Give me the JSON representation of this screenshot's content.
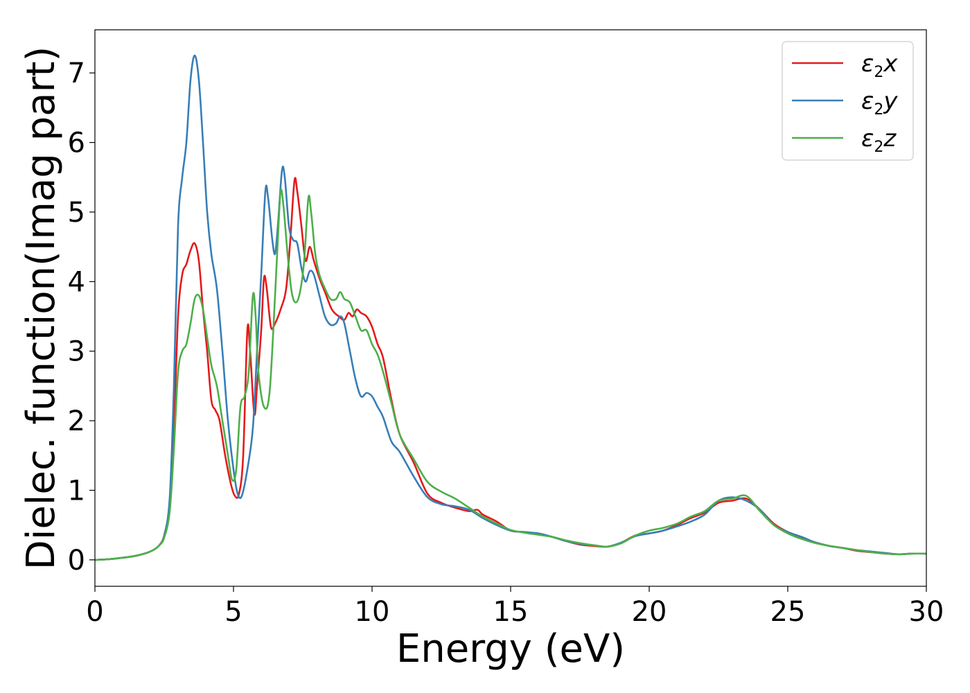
{
  "chart_data": {
    "type": "line",
    "xlabel": "Energy (eV)",
    "ylabel": "Dielec. function(Imag part)",
    "xlim": [
      0,
      30
    ],
    "ylim": [
      -0.38,
      7.62
    ],
    "xticks": [
      0,
      5,
      10,
      15,
      20,
      25,
      30
    ],
    "yticks": [
      0,
      1,
      2,
      3,
      4,
      5,
      6,
      7
    ],
    "grid": false,
    "legend_position": "top-right",
    "series": [
      {
        "name": "ε2x",
        "legend_base": "ε",
        "legend_sub": "2",
        "legend_var": "x",
        "color": "#e41a1c",
        "points": [
          [
            0,
            0
          ],
          [
            0.5,
            0.01
          ],
          [
            1,
            0.03
          ],
          [
            1.5,
            0.06
          ],
          [
            2,
            0.12
          ],
          [
            2.3,
            0.2
          ],
          [
            2.5,
            0.35
          ],
          [
            2.7,
            0.8
          ],
          [
            2.85,
            1.9
          ],
          [
            3.0,
            3.5
          ],
          [
            3.15,
            4.1
          ],
          [
            3.3,
            4.25
          ],
          [
            3.45,
            4.45
          ],
          [
            3.6,
            4.55
          ],
          [
            3.75,
            4.3
          ],
          [
            3.9,
            3.6
          ],
          [
            4.05,
            3.0
          ],
          [
            4.2,
            2.3
          ],
          [
            4.35,
            2.15
          ],
          [
            4.5,
            2.0
          ],
          [
            4.7,
            1.5
          ],
          [
            4.9,
            1.1
          ],
          [
            5.05,
            0.92
          ],
          [
            5.2,
            0.95
          ],
          [
            5.35,
            1.5
          ],
          [
            5.5,
            3.3
          ],
          [
            5.6,
            3.0
          ],
          [
            5.75,
            2.1
          ],
          [
            5.85,
            2.5
          ],
          [
            6.0,
            3.3
          ],
          [
            6.1,
            4.05
          ],
          [
            6.2,
            3.9
          ],
          [
            6.35,
            3.35
          ],
          [
            6.5,
            3.4
          ],
          [
            6.7,
            3.6
          ],
          [
            6.9,
            3.9
          ],
          [
            7.05,
            4.6
          ],
          [
            7.2,
            5.45
          ],
          [
            7.3,
            5.3
          ],
          [
            7.45,
            4.8
          ],
          [
            7.6,
            4.3
          ],
          [
            7.75,
            4.5
          ],
          [
            7.9,
            4.3
          ],
          [
            8.1,
            4.05
          ],
          [
            8.3,
            3.85
          ],
          [
            8.55,
            3.6
          ],
          [
            8.8,
            3.5
          ],
          [
            9.0,
            3.45
          ],
          [
            9.15,
            3.55
          ],
          [
            9.3,
            3.5
          ],
          [
            9.45,
            3.6
          ],
          [
            9.6,
            3.55
          ],
          [
            9.8,
            3.5
          ],
          [
            10.0,
            3.35
          ],
          [
            10.2,
            3.1
          ],
          [
            10.4,
            2.9
          ],
          [
            10.7,
            2.3
          ],
          [
            11.0,
            1.8
          ],
          [
            11.5,
            1.4
          ],
          [
            12.0,
            0.95
          ],
          [
            12.5,
            0.82
          ],
          [
            13.0,
            0.75
          ],
          [
            13.5,
            0.7
          ],
          [
            13.8,
            0.72
          ],
          [
            14.0,
            0.65
          ],
          [
            14.5,
            0.55
          ],
          [
            15.0,
            0.42
          ],
          [
            15.5,
            0.4
          ],
          [
            16.0,
            0.37
          ],
          [
            16.5,
            0.33
          ],
          [
            17.0,
            0.27
          ],
          [
            17.5,
            0.22
          ],
          [
            18.0,
            0.2
          ],
          [
            18.5,
            0.19
          ],
          [
            19.0,
            0.25
          ],
          [
            19.5,
            0.35
          ],
          [
            20.0,
            0.38
          ],
          [
            20.5,
            0.42
          ],
          [
            21.0,
            0.5
          ],
          [
            21.5,
            0.6
          ],
          [
            22.0,
            0.68
          ],
          [
            22.5,
            0.82
          ],
          [
            23.0,
            0.85
          ],
          [
            23.5,
            0.88
          ],
          [
            24.0,
            0.72
          ],
          [
            24.5,
            0.52
          ],
          [
            25.0,
            0.4
          ],
          [
            25.5,
            0.32
          ],
          [
            26.0,
            0.25
          ],
          [
            26.5,
            0.2
          ],
          [
            27.0,
            0.17
          ],
          [
            27.5,
            0.13
          ],
          [
            28.0,
            0.11
          ],
          [
            28.5,
            0.09
          ],
          [
            29.0,
            0.08
          ],
          [
            29.5,
            0.09
          ],
          [
            30.0,
            0.09
          ]
        ]
      },
      {
        "name": "ε2y",
        "legend_base": "ε",
        "legend_sub": "2",
        "legend_var": "y",
        "color": "#377eb8",
        "points": [
          [
            0,
            0
          ],
          [
            0.5,
            0.01
          ],
          [
            1,
            0.03
          ],
          [
            1.5,
            0.06
          ],
          [
            2,
            0.12
          ],
          [
            2.3,
            0.2
          ],
          [
            2.5,
            0.35
          ],
          [
            2.7,
            0.9
          ],
          [
            2.85,
            2.5
          ],
          [
            3.0,
            4.8
          ],
          [
            3.15,
            5.5
          ],
          [
            3.3,
            6.0
          ],
          [
            3.45,
            6.9
          ],
          [
            3.6,
            7.25
          ],
          [
            3.75,
            6.9
          ],
          [
            3.9,
            6.0
          ],
          [
            4.05,
            5.0
          ],
          [
            4.2,
            4.4
          ],
          [
            4.4,
            3.9
          ],
          [
            4.6,
            3.0
          ],
          [
            4.8,
            2.0
          ],
          [
            5.0,
            1.3
          ],
          [
            5.15,
            0.95
          ],
          [
            5.3,
            0.92
          ],
          [
            5.5,
            1.3
          ],
          [
            5.7,
            1.9
          ],
          [
            5.85,
            3.0
          ],
          [
            6.0,
            4.1
          ],
          [
            6.15,
            5.3
          ],
          [
            6.25,
            5.2
          ],
          [
            6.4,
            4.6
          ],
          [
            6.5,
            4.4
          ],
          [
            6.6,
            4.8
          ],
          [
            6.75,
            5.6
          ],
          [
            6.85,
            5.5
          ],
          [
            7.0,
            4.8
          ],
          [
            7.15,
            4.6
          ],
          [
            7.3,
            4.55
          ],
          [
            7.45,
            4.2
          ],
          [
            7.6,
            4.0
          ],
          [
            7.75,
            4.15
          ],
          [
            7.9,
            4.1
          ],
          [
            8.1,
            3.8
          ],
          [
            8.3,
            3.5
          ],
          [
            8.5,
            3.38
          ],
          [
            8.7,
            3.4
          ],
          [
            8.85,
            3.5
          ],
          [
            9.0,
            3.4
          ],
          [
            9.2,
            3.0
          ],
          [
            9.4,
            2.6
          ],
          [
            9.6,
            2.35
          ],
          [
            9.8,
            2.4
          ],
          [
            10.0,
            2.35
          ],
          [
            10.2,
            2.2
          ],
          [
            10.4,
            2.05
          ],
          [
            10.7,
            1.7
          ],
          [
            11.0,
            1.55
          ],
          [
            11.5,
            1.2
          ],
          [
            12.0,
            0.9
          ],
          [
            12.5,
            0.8
          ],
          [
            13.0,
            0.77
          ],
          [
            13.5,
            0.72
          ],
          [
            14.0,
            0.6
          ],
          [
            14.5,
            0.5
          ],
          [
            15.0,
            0.42
          ],
          [
            15.5,
            0.4
          ],
          [
            16.0,
            0.38
          ],
          [
            16.5,
            0.33
          ],
          [
            17.0,
            0.27
          ],
          [
            17.5,
            0.23
          ],
          [
            18.0,
            0.21
          ],
          [
            18.5,
            0.19
          ],
          [
            19.0,
            0.25
          ],
          [
            19.5,
            0.34
          ],
          [
            20.0,
            0.38
          ],
          [
            20.5,
            0.42
          ],
          [
            21.0,
            0.48
          ],
          [
            21.5,
            0.55
          ],
          [
            22.0,
            0.65
          ],
          [
            22.5,
            0.85
          ],
          [
            23.0,
            0.9
          ],
          [
            23.5,
            0.85
          ],
          [
            24.0,
            0.72
          ],
          [
            24.5,
            0.5
          ],
          [
            25.0,
            0.4
          ],
          [
            25.5,
            0.33
          ],
          [
            26.0,
            0.25
          ],
          [
            26.5,
            0.2
          ],
          [
            27.0,
            0.17
          ],
          [
            27.5,
            0.14
          ],
          [
            28.0,
            0.12
          ],
          [
            28.5,
            0.1
          ],
          [
            29.0,
            0.08
          ],
          [
            29.5,
            0.09
          ],
          [
            30.0,
            0.09
          ]
        ]
      },
      {
        "name": "ε2z",
        "legend_base": "ε",
        "legend_sub": "2",
        "legend_var": "z",
        "color": "#4daf4a",
        "points": [
          [
            0,
            0
          ],
          [
            0.5,
            0.01
          ],
          [
            1,
            0.03
          ],
          [
            1.5,
            0.06
          ],
          [
            2,
            0.12
          ],
          [
            2.3,
            0.2
          ],
          [
            2.5,
            0.32
          ],
          [
            2.7,
            0.7
          ],
          [
            2.85,
            1.6
          ],
          [
            3.0,
            2.7
          ],
          [
            3.15,
            3.0
          ],
          [
            3.3,
            3.1
          ],
          [
            3.45,
            3.4
          ],
          [
            3.6,
            3.75
          ],
          [
            3.75,
            3.8
          ],
          [
            3.9,
            3.6
          ],
          [
            4.05,
            3.2
          ],
          [
            4.2,
            2.8
          ],
          [
            4.4,
            2.5
          ],
          [
            4.6,
            2.0
          ],
          [
            4.8,
            1.5
          ],
          [
            4.95,
            1.15
          ],
          [
            5.1,
            1.3
          ],
          [
            5.25,
            2.2
          ],
          [
            5.4,
            2.35
          ],
          [
            5.55,
            2.7
          ],
          [
            5.7,
            3.8
          ],
          [
            5.8,
            3.5
          ],
          [
            5.9,
            2.7
          ],
          [
            6.1,
            2.2
          ],
          [
            6.3,
            2.4
          ],
          [
            6.5,
            3.8
          ],
          [
            6.6,
            4.6
          ],
          [
            6.7,
            5.3
          ],
          [
            6.8,
            5.1
          ],
          [
            6.95,
            4.4
          ],
          [
            7.1,
            3.85
          ],
          [
            7.25,
            3.7
          ],
          [
            7.4,
            3.85
          ],
          [
            7.55,
            4.3
          ],
          [
            7.7,
            5.2
          ],
          [
            7.8,
            5.0
          ],
          [
            7.95,
            4.4
          ],
          [
            8.1,
            4.1
          ],
          [
            8.3,
            3.9
          ],
          [
            8.5,
            3.75
          ],
          [
            8.7,
            3.75
          ],
          [
            8.85,
            3.85
          ],
          [
            9.0,
            3.75
          ],
          [
            9.2,
            3.7
          ],
          [
            9.4,
            3.5
          ],
          [
            9.6,
            3.3
          ],
          [
            9.8,
            3.3
          ],
          [
            10.0,
            3.1
          ],
          [
            10.2,
            2.95
          ],
          [
            10.4,
            2.7
          ],
          [
            10.7,
            2.25
          ],
          [
            11.0,
            1.8
          ],
          [
            11.5,
            1.45
          ],
          [
            12.0,
            1.12
          ],
          [
            12.5,
            0.98
          ],
          [
            13.0,
            0.88
          ],
          [
            13.5,
            0.75
          ],
          [
            14.0,
            0.62
          ],
          [
            14.5,
            0.52
          ],
          [
            15.0,
            0.43
          ],
          [
            15.5,
            0.39
          ],
          [
            16.0,
            0.36
          ],
          [
            16.5,
            0.33
          ],
          [
            17.0,
            0.28
          ],
          [
            17.5,
            0.24
          ],
          [
            18.0,
            0.21
          ],
          [
            18.5,
            0.19
          ],
          [
            19.0,
            0.24
          ],
          [
            19.5,
            0.35
          ],
          [
            20.0,
            0.42
          ],
          [
            20.5,
            0.46
          ],
          [
            21.0,
            0.52
          ],
          [
            21.5,
            0.62
          ],
          [
            22.0,
            0.7
          ],
          [
            22.5,
            0.85
          ],
          [
            23.0,
            0.88
          ],
          [
            23.5,
            0.92
          ],
          [
            24.0,
            0.7
          ],
          [
            24.5,
            0.5
          ],
          [
            25.0,
            0.38
          ],
          [
            25.5,
            0.3
          ],
          [
            26.0,
            0.24
          ],
          [
            26.5,
            0.2
          ],
          [
            27.0,
            0.17
          ],
          [
            27.5,
            0.14
          ],
          [
            28.0,
            0.11
          ],
          [
            28.5,
            0.09
          ],
          [
            29.0,
            0.08
          ],
          [
            29.5,
            0.09
          ],
          [
            30.0,
            0.09
          ]
        ]
      }
    ]
  }
}
